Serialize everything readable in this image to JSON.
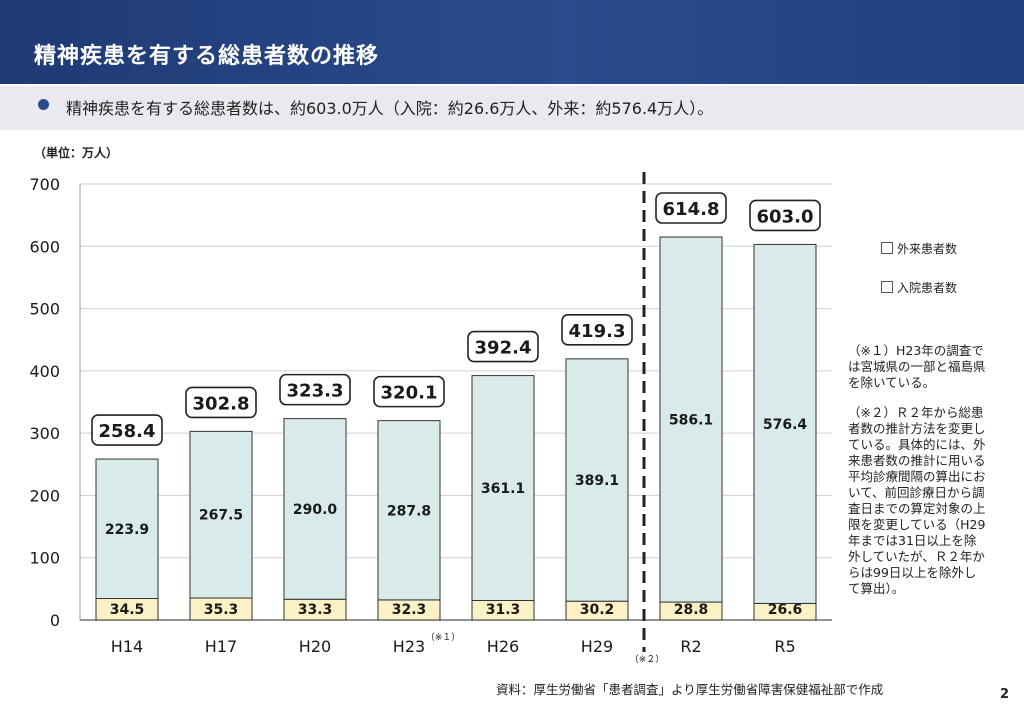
{
  "header": {
    "title": "精神疾患を有する総患者数の推移"
  },
  "summary": {
    "text": "精神疾患を有する総患者数は、約603.0万人（入院：約26.6万人、外来：約576.4万人）。"
  },
  "unit_label": "（単位：万人）",
  "legend": [
    {
      "label": "外来患者数",
      "color": "#d9eaea"
    },
    {
      "label": "入院患者数",
      "color": "#fbf1c4"
    }
  ],
  "notes": {
    "note1": [
      "（※１）H23年の調査で",
      "は宮城県の一部と福島県",
      "を除いている。"
    ],
    "note2": [
      "（※２）Ｒ２年から総患",
      "者数の推計方法を変更し",
      "ている。具体的には、外",
      "来患者数の推計に用いる",
      "平均診療間隔の算出にお",
      "いて、前回診療日から調",
      "査日までの算定対象の上",
      "限を変更している（H29",
      "年までは31日以上を除",
      "外していたが、Ｒ２年か",
      "らは99日以上を除外し",
      "て算出）。"
    ]
  },
  "source": "資料：厚生労働省「患者調査」より厚生労働省障害保健福祉部で作成",
  "page_number": "2",
  "chart_data": {
    "type": "bar",
    "stacked": true,
    "categories": [
      "H14",
      "H17",
      "H20",
      "H23",
      "H26",
      "H29",
      "R2",
      "R5"
    ],
    "category_marks": {
      "H23": "（※１）",
      "R2": "（※２）"
    },
    "series": [
      {
        "name": "入院患者数",
        "values": [
          34.5,
          35.3,
          33.3,
          32.3,
          31.3,
          30.2,
          28.8,
          26.6
        ],
        "color": "#fbf1c4"
      },
      {
        "name": "外来患者数",
        "values": [
          223.9,
          267.5,
          290.0,
          287.8,
          361.1,
          389.1,
          586.1,
          576.4
        ],
        "color": "#d9eaea"
      }
    ],
    "totals": [
      "258.4",
      "302.8",
      "323.3",
      "320.1",
      "392.4",
      "419.3",
      "614.8",
      "603.0"
    ],
    "inpatient_labels": [
      "34.5",
      "35.3",
      "33.3",
      "32.3",
      "31.3",
      "30.2",
      "28.8",
      "26.6"
    ],
    "outpatient_labels": [
      "223.9",
      "267.5",
      "290.0",
      "287.8",
      "361.1",
      "389.1",
      "586.1",
      "576.4"
    ],
    "ylim": [
      0,
      700
    ],
    "yticks": [
      0,
      100,
      200,
      300,
      400,
      500,
      600,
      700
    ],
    "grid": true,
    "divider_before": "R2",
    "legend_position": "right"
  }
}
